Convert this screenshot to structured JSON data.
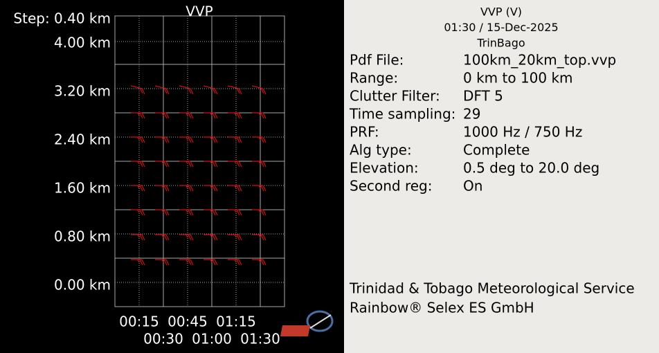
{
  "plot": {
    "title": "VVP",
    "step": "Step: 0.40 km",
    "y_labels": [
      "4.00 km",
      "3.20 km",
      "2.40 km",
      "1.60 km",
      "0.80 km",
      "0.00 km"
    ],
    "x_labels_top": [
      "00:15",
      "00:45",
      "01:15"
    ],
    "x_labels_bottom": [
      "00:30",
      "01:00",
      "01:30"
    ]
  },
  "info": {
    "header": [
      "VVP (V)",
      "01:30 / 15-Dec-2025",
      "TrinBago"
    ],
    "rows": [
      [
        "Pdf File:",
        "100km_20km_top.vvp"
      ],
      [
        "Range:",
        "0 km to 100 km"
      ],
      [
        "Clutter Filter:",
        "DFT 5"
      ],
      [
        "Time sampling:",
        "29"
      ],
      [
        "PRF:",
        "1000 Hz / 750 Hz"
      ],
      [
        "Alg type:",
        "Complete"
      ],
      [
        "Elevation:",
        "0.5 deg to 20.0 deg"
      ],
      [
        "Second reg:",
        "On"
      ]
    ],
    "footer": [
      "Trinidad & Tobago Meteorological Service",
      "Rainbow® Selex ES GmbH"
    ]
  }
}
